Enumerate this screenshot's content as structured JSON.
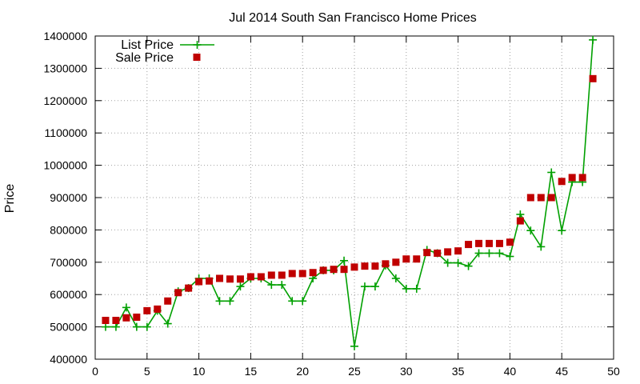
{
  "chart_data": {
    "type": "line",
    "title": "Jul 2014 South San Francisco Home Prices",
    "xlabel": "",
    "ylabel": "Price",
    "xlim": [
      0,
      50
    ],
    "ylim": [
      400000,
      1400000
    ],
    "xticks": [
      0,
      5,
      10,
      15,
      20,
      25,
      30,
      35,
      40,
      45,
      50
    ],
    "yticks": [
      400000,
      500000,
      600000,
      700000,
      800000,
      900000,
      1000000,
      1100000,
      1200000,
      1300000,
      1400000
    ],
    "grid": true,
    "legend_position": "top-left",
    "x": [
      1,
      2,
      3,
      4,
      5,
      6,
      7,
      8,
      9,
      10,
      11,
      12,
      13,
      14,
      15,
      16,
      17,
      18,
      19,
      20,
      21,
      22,
      23,
      24,
      25,
      26,
      27,
      28,
      29,
      30,
      31,
      32,
      33,
      34,
      35,
      36,
      37,
      38,
      39,
      40,
      41,
      42,
      43,
      44,
      45,
      46,
      47,
      48
    ],
    "series": [
      {
        "name": "List Price",
        "style": "lines+points",
        "color": "#00a000",
        "marker": "plus",
        "values": [
          500000,
          500000,
          560000,
          500000,
          500000,
          550000,
          510000,
          610000,
          620000,
          650000,
          650000,
          580000,
          580000,
          625000,
          650000,
          650000,
          630000,
          630000,
          580000,
          580000,
          650000,
          675000,
          675000,
          705000,
          440000,
          625000,
          625000,
          690000,
          650000,
          618000,
          618000,
          738000,
          728000,
          698000,
          698000,
          688000,
          728000,
          728000,
          728000,
          718000,
          848000,
          798000,
          748000,
          978000,
          798000,
          948000,
          948000,
          1388000
        ]
      },
      {
        "name": "Sale Price",
        "style": "points",
        "color": "#c00000",
        "marker": "square",
        "values": [
          520000,
          520000,
          528000,
          530000,
          550000,
          555000,
          580000,
          606000,
          620000,
          640000,
          642000,
          650000,
          648000,
          648000,
          655000,
          655000,
          660000,
          660000,
          665000,
          665000,
          668000,
          675000,
          678000,
          678000,
          685000,
          688000,
          688000,
          695000,
          700000,
          710000,
          710000,
          730000,
          728000,
          732000,
          735000,
          755000,
          758000,
          758000,
          758000,
          762000,
          828000,
          900000,
          900000,
          900000,
          950000,
          962000,
          962000,
          1268000
        ]
      }
    ]
  }
}
